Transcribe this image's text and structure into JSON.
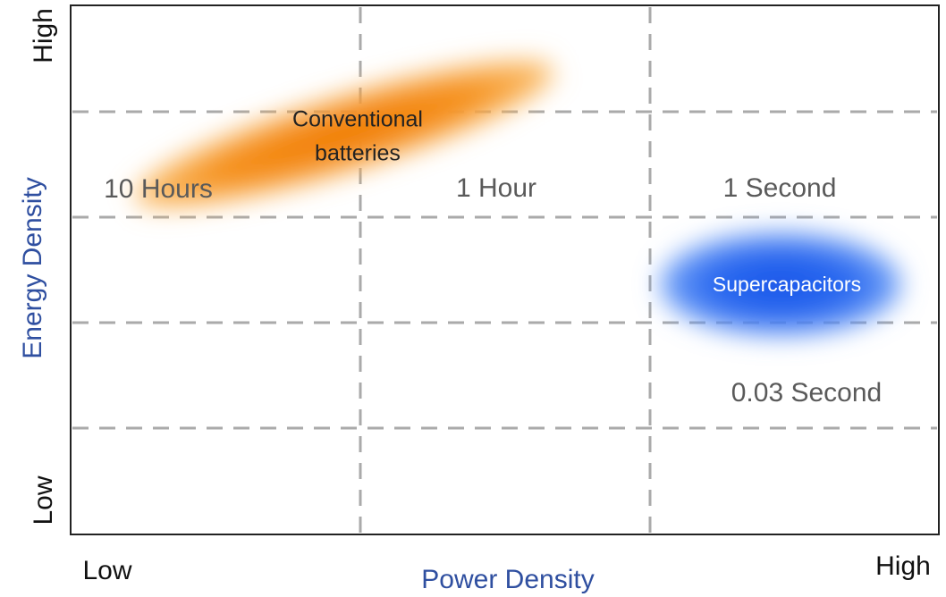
{
  "y_axis": {
    "title": "Energy Density",
    "high": "High",
    "low": "Low"
  },
  "x_axis": {
    "title": "Power Density",
    "high": "High",
    "low": "Low"
  },
  "regions": [
    {
      "label": [
        "Conventional",
        "batteries"
      ]
    },
    {
      "label": [
        "Supercapacitors"
      ]
    }
  ],
  "time_labels": [
    "10 Hours",
    "1 Hour",
    "1 Second",
    "0.03 Second"
  ]
}
